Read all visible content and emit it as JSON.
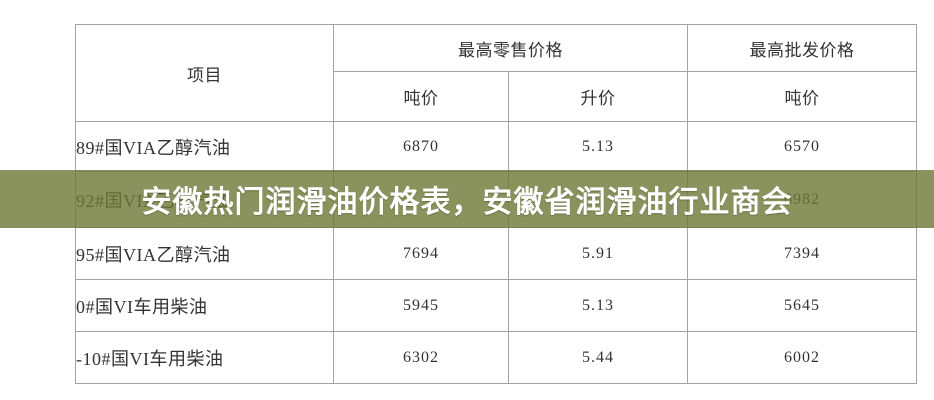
{
  "banner": {
    "text": "安徽热门润滑油价格表，安徽省润滑油行业商会",
    "bg_color": "#6d7734",
    "text_color": "#ffffff"
  },
  "chart_data": {
    "type": "table",
    "title": "安徽热门润滑油价格表",
    "header": {
      "item": "项目",
      "retail_group": "最高零售价格",
      "wholesale_group": "最高批发价格",
      "retail_ton": "吨价",
      "retail_liter": "升价",
      "wholesale_ton": "吨价"
    },
    "rows": [
      {
        "label": "89#国VIA乙醇汽油",
        "retail_ton": "6870",
        "retail_liter": "5.13",
        "wholesale_ton": "6570"
      },
      {
        "label": "92#国VIA乙醇汽油",
        "retail_ton": "",
        "retail_liter": "",
        "wholesale_ton": "6982"
      },
      {
        "label": "95#国VIA乙醇汽油",
        "retail_ton": "7694",
        "retail_liter": "5.91",
        "wholesale_ton": "7394"
      },
      {
        "label": "0#国VI车用柴油",
        "retail_ton": "5945",
        "retail_liter": "5.13",
        "wholesale_ton": "5645"
      },
      {
        "label": "-10#国VI车用柴油",
        "retail_ton": "6302",
        "retail_liter": "5.44",
        "wholesale_ton": "6002"
      }
    ],
    "notes": "92# row retail values hidden behind overlay banner; wholesale value 6982 partially visible through banner"
  }
}
